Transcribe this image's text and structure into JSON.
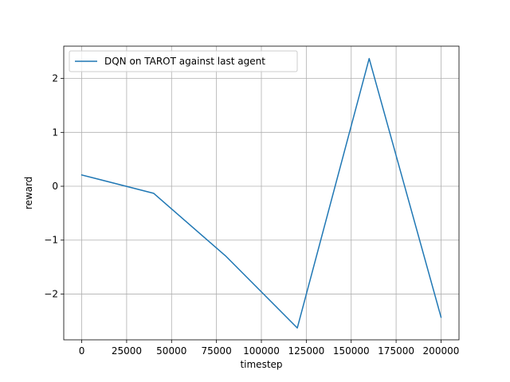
{
  "chart_data": {
    "type": "line",
    "xlabel": "timestep",
    "ylabel": "reward",
    "xlim": [
      -10000,
      210000
    ],
    "ylim": [
      -2.85,
      2.6
    ],
    "grid": true,
    "legend_position": "top-left",
    "x_ticks": [
      0,
      25000,
      50000,
      75000,
      100000,
      125000,
      150000,
      175000,
      200000
    ],
    "x_tick_labels": [
      "0",
      "25000",
      "50000",
      "75000",
      "100000",
      "125000",
      "150000",
      "175000",
      "200000"
    ],
    "y_ticks": [
      -2,
      -1,
      0,
      1,
      2
    ],
    "y_tick_labels": [
      "−2",
      "−1",
      "0",
      "1",
      "2"
    ],
    "series": [
      {
        "name": "DQN on TAROT against last agent",
        "color": "#1f77b4",
        "x": [
          0,
          40000,
          80000,
          120000,
          160000,
          200000
        ],
        "y": [
          0.21,
          -0.13,
          -1.29,
          -2.63,
          2.37,
          -2.43
        ]
      }
    ]
  }
}
